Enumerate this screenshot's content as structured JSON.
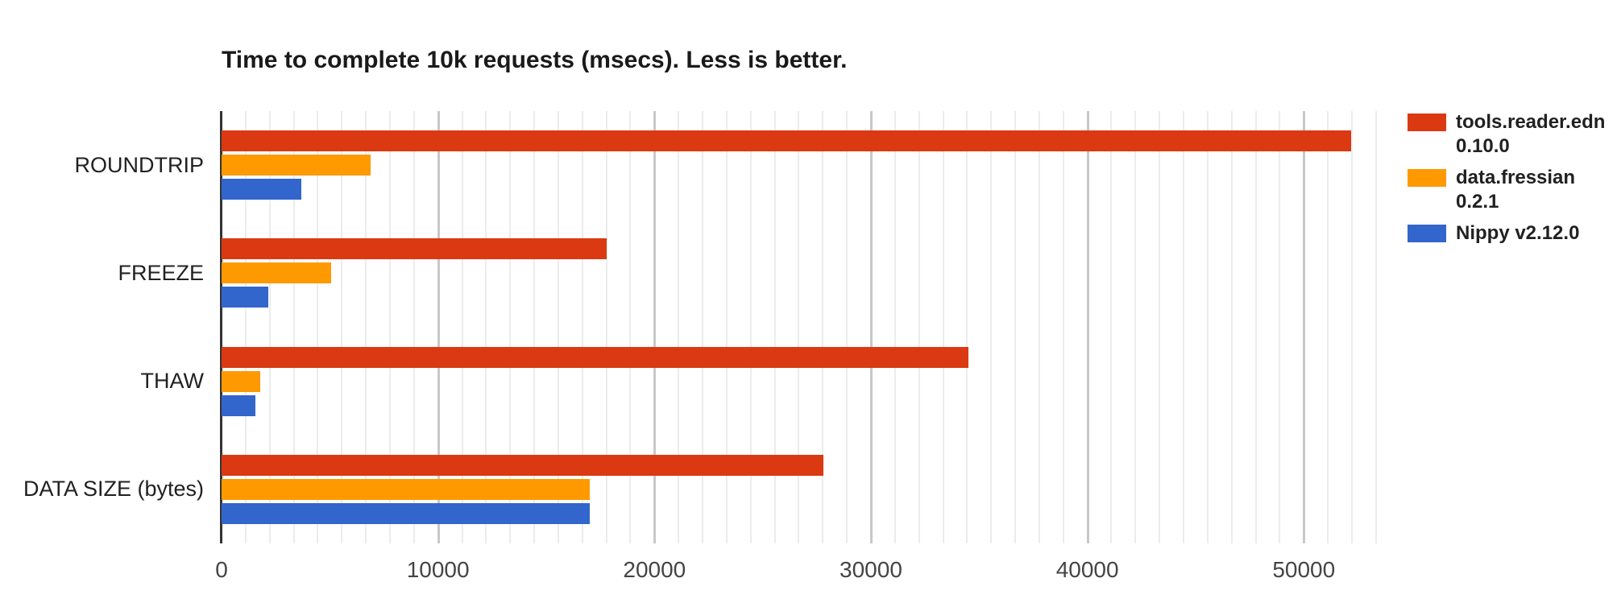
{
  "chart_data": {
    "type": "bar",
    "orientation": "horizontal",
    "title": "Time to complete 10k requests (msecs). Less is better.",
    "categories": [
      "ROUNDTRIP",
      "FREEZE",
      "THAW",
      "DATA SIZE (bytes)"
    ],
    "series": [
      {
        "name": "tools.reader.edn 0.10.0",
        "legend_lines": [
          "tools.reader.edn",
          "0.10.0"
        ],
        "color": "#DB3912",
        "values": [
          52200,
          17800,
          34500,
          27800
        ]
      },
      {
        "name": "data.fressian 0.2.1",
        "legend_lines": [
          "data.fressian",
          "0.2.1"
        ],
        "color": "#FF9900",
        "values": [
          6900,
          5050,
          1800,
          17000
        ]
      },
      {
        "name": "Nippy v2.12.0",
        "legend_lines": [
          "Nippy v2.12.0"
        ],
        "color": "#3366CC",
        "values": [
          3700,
          2150,
          1550,
          17000
        ]
      }
    ],
    "xlabel": "",
    "ylabel": "",
    "xticks": [
      0,
      10000,
      20000,
      30000,
      40000,
      50000
    ],
    "xlim": [
      0,
      53600
    ],
    "grid": true,
    "minor_gridlines_per_major": 9,
    "legend_position": "right",
    "colors": {
      "axis": "#333333",
      "grid_minor": "#ececec",
      "grid_major": "#c8c8c8",
      "tick_label": "#444444",
      "category_label": "#212121",
      "title": "#1a1a1a",
      "background": "#ffffff"
    }
  }
}
